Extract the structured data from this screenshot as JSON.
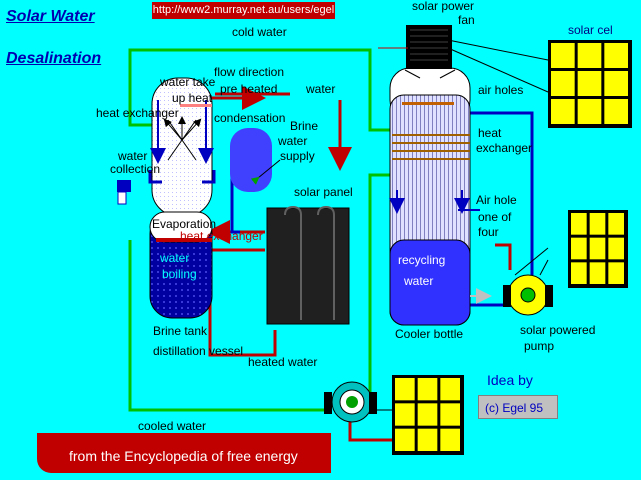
{
  "title": {
    "line1": "Solar Water",
    "line2": "Desalination"
  },
  "url": "http://www2.murray.net.au/users/egel",
  "footer": "from  the Encyclopedia of free energy",
  "credit": {
    "idea": "Idea   by",
    "copyright": "(c)  Egel  95"
  },
  "labels": {
    "cold_water": "cold water",
    "solar_power": "solar power",
    "fan": "fan",
    "solar_cell": "solar cel",
    "water_take_up_heat_1": "water take",
    "water_take_up_heat_2": "up heat",
    "flow_direction": "flow direction",
    "pre_heated": "pre heated",
    "water": "water",
    "air_holes": "air holes",
    "heat_exchanger_left": "heat exchanger",
    "condensation": "condensation",
    "brine_water_supply_1": "Brine",
    "brine_water_supply_2": "water",
    "brine_water_supply_3": "supply",
    "heat_exchanger_right_1": "heat",
    "heat_exchanger_right_2": "exchanger",
    "water_collection_1": "water",
    "water_collection_2": "collection",
    "solar_panel": "solar panel",
    "air_hole_1": "Air hole",
    "air_hole_2": "one of",
    "air_hole_3": "four",
    "evaporation": "Evaporation",
    "heat_exchanger_bottom": "heat exchanger",
    "water_boiling_1": "water",
    "water_boiling_2": "boiling",
    "recycling_water_1": "recycling",
    "recycling_water_2": "water",
    "brine_tank_1": "Brine tank",
    "brine_tank_2": "distillation vessel",
    "cooler_bottle": "Cooler bottle",
    "solar_powered_pump_1": "solar powered",
    "solar_powered_pump_2": "pump",
    "heated_water": "heated water",
    "cooled_water": "cooled water"
  },
  "colors": {
    "background": "#00ffff",
    "pipe_green": "#00c000",
    "pipe_red": "#c00000",
    "pipe_blue": "#0000c0",
    "solar_cell_fill": "#ffff00",
    "footer_red": "#c00000",
    "brine_blue": "#0000a0"
  },
  "icons": [
    "solar-cell-icon",
    "fan-icon",
    "pump-icon",
    "solar-panel-icon",
    "arrow-icon"
  ]
}
